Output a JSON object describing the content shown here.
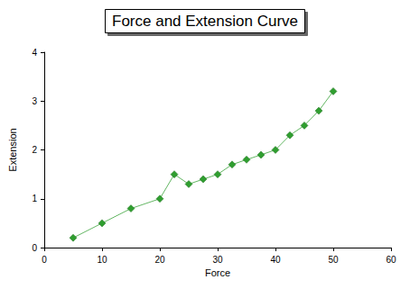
{
  "chart_data": {
    "type": "line",
    "title": "Force and Extension Curve",
    "x_label": "Force",
    "y_label": "Extension",
    "x": [
      5,
      10,
      15,
      20,
      22.5,
      25,
      27.5,
      30,
      32.5,
      35,
      37.5,
      40,
      42.5,
      45,
      47.5,
      50
    ],
    "values": [
      0.2,
      0.5,
      0.8,
      1.0,
      1.5,
      1.3,
      1.4,
      1.5,
      1.7,
      1.8,
      1.9,
      2.0,
      2.3,
      2.5,
      2.8,
      3.2
    ],
    "color": "#2f9e2f",
    "marker": "diamond",
    "line_style": "solid",
    "xlim": [
      0,
      60
    ],
    "xticks": [
      0,
      10,
      20,
      30,
      40,
      50,
      60
    ],
    "ylim": [
      0,
      4
    ],
    "yticks": [
      0,
      1,
      2,
      3,
      4
    ],
    "grid": false
  }
}
